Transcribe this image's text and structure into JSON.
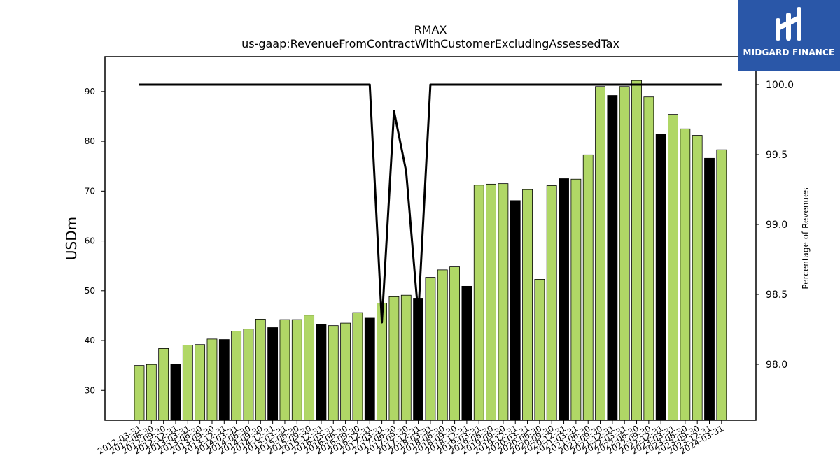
{
  "brand": {
    "name": "MIDGARD FINANCE",
    "color": "#2a57a8"
  },
  "chart_data": {
    "type": "bar",
    "title": "RMAX",
    "subtitle": "us-gaap:RevenueFromContractWithCustomerExcludingAssessedTax",
    "ylabel": "USDm",
    "y2label": "Percentage of Revenues",
    "ylim": [
      24,
      97
    ],
    "y2lim": [
      97.6,
      100.2
    ],
    "yticks": [
      30,
      40,
      50,
      60,
      70,
      80,
      90
    ],
    "y2ticks": [
      98.0,
      98.5,
      99.0,
      99.5,
      100.0
    ],
    "bar_color": "#b0d766",
    "q4_bar_color": "#000000",
    "line_color": "#000000",
    "categories": [
      "2012-03-31",
      "2012-06-30",
      "2012-09-30",
      "2012-12-31",
      "2013-03-31",
      "2013-06-30",
      "2013-09-30",
      "2013-12-31",
      "2014-03-31",
      "2014-06-30",
      "2014-09-30",
      "2014-12-31",
      "2015-03-31",
      "2015-06-30",
      "2015-09-30",
      "2015-12-31",
      "2016-03-31",
      "2016-06-30",
      "2016-09-30",
      "2016-12-31",
      "2017-03-31",
      "2017-06-30",
      "2017-09-30",
      "2017-12-31",
      "2018-03-31",
      "2018-06-30",
      "2018-09-30",
      "2018-12-31",
      "2019-03-31",
      "2019-06-30",
      "2019-09-30",
      "2019-12-31",
      "2020-03-31",
      "2020-06-30",
      "2020-09-30",
      "2020-12-31",
      "2021-03-31",
      "2021-06-30",
      "2021-09-30",
      "2021-12-31",
      "2022-03-31",
      "2022-06-30",
      "2022-09-30",
      "2022-12-31",
      "2023-03-31",
      "2023-06-30",
      "2023-09-30",
      "2023-12-31",
      "2024-03-31"
    ],
    "series": [
      {
        "type": "bar",
        "values": [
          35.0,
          35.2,
          38.4,
          35.2,
          39.1,
          39.2,
          40.3,
          40.2,
          41.9,
          42.3,
          44.3,
          42.6,
          44.2,
          44.2,
          45.1,
          43.3,
          43.0,
          43.5,
          45.6,
          44.5,
          47.5,
          48.8,
          49.1,
          48.5,
          52.7,
          54.2,
          54.8,
          50.9,
          71.2,
          71.4,
          71.5,
          68.1,
          70.3,
          52.3,
          71.1,
          72.5,
          72.4,
          77.3,
          91.0,
          89.2,
          91.0,
          92.2,
          88.9,
          81.4,
          85.4,
          82.5,
          81.2,
          76.6,
          78.3
        ]
      },
      {
        "type": "line",
        "axis": "right",
        "values": [
          100,
          100,
          100,
          100,
          100,
          100,
          100,
          100,
          100,
          100,
          100,
          100,
          100,
          100,
          100,
          100,
          100,
          100,
          100,
          100,
          98.3,
          99.81,
          99.38,
          98.35,
          100,
          100,
          100,
          100,
          100,
          100,
          100,
          100,
          100,
          100,
          100,
          100,
          100,
          100,
          100,
          100,
          100,
          100,
          100,
          100,
          100,
          100,
          100,
          100,
          100
        ]
      }
    ]
  }
}
